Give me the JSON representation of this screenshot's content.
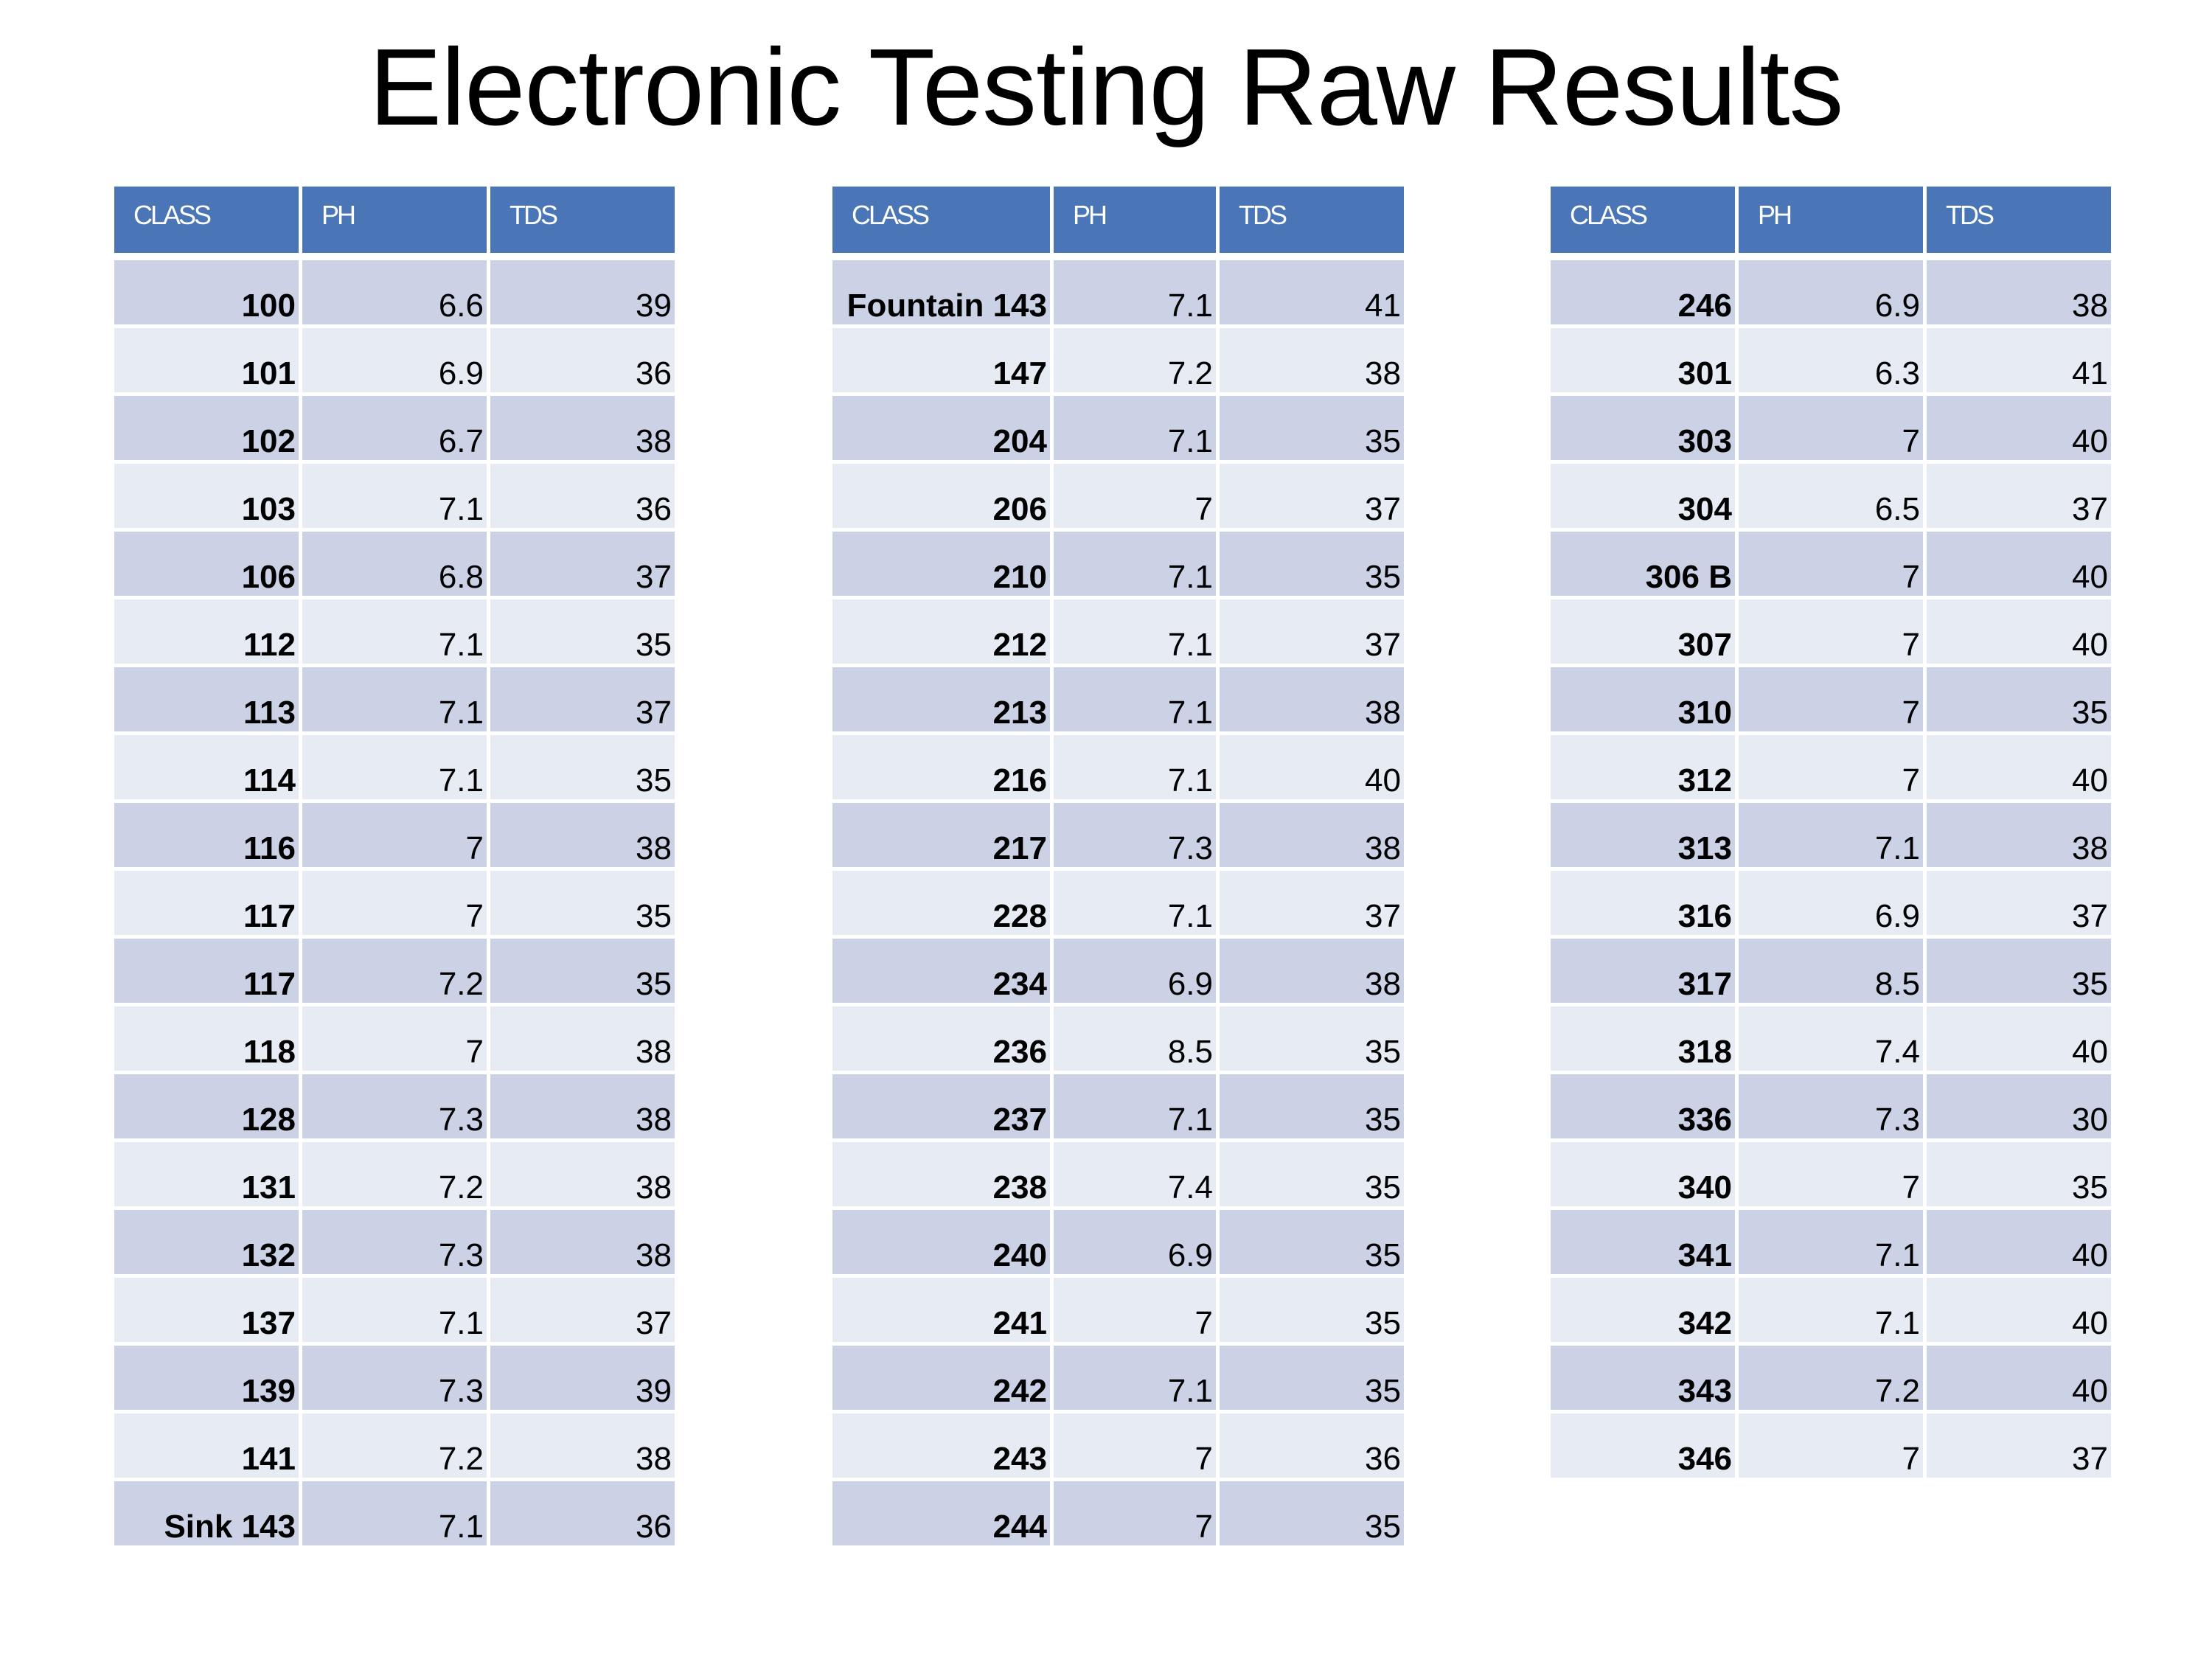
{
  "title": "Electronic Testing Raw Results",
  "headers": [
    "CLASS",
    "PH",
    "TDS"
  ],
  "colors": {
    "header": "#4a76b8",
    "row_dark": "#cbd2e6",
    "row_light": "#e7ebf3"
  },
  "tables": [
    [
      [
        "100",
        "6.6",
        "39"
      ],
      [
        "101",
        "6.9",
        "36"
      ],
      [
        "102",
        "6.7",
        "38"
      ],
      [
        "103",
        "7.1",
        "36"
      ],
      [
        "106",
        "6.8",
        "37"
      ],
      [
        "112",
        "7.1",
        "35"
      ],
      [
        "113",
        "7.1",
        "37"
      ],
      [
        "114",
        "7.1",
        "35"
      ],
      [
        "116",
        "7",
        "38"
      ],
      [
        "117",
        "7",
        "35"
      ],
      [
        "117",
        "7.2",
        "35"
      ],
      [
        "118",
        "7",
        "38"
      ],
      [
        "128",
        "7.3",
        "38"
      ],
      [
        "131",
        "7.2",
        "38"
      ],
      [
        "132",
        "7.3",
        "38"
      ],
      [
        "137",
        "7.1",
        "37"
      ],
      [
        "139",
        "7.3",
        "39"
      ],
      [
        "141",
        "7.2",
        "38"
      ],
      [
        "Sink 143",
        "7.1",
        "36"
      ]
    ],
    [
      [
        "Fountain 143",
        "7.1",
        "41"
      ],
      [
        "147",
        "7.2",
        "38"
      ],
      [
        "204",
        "7.1",
        "35"
      ],
      [
        "206",
        "7",
        "37"
      ],
      [
        "210",
        "7.1",
        "35"
      ],
      [
        "212",
        "7.1",
        "37"
      ],
      [
        "213",
        "7.1",
        "38"
      ],
      [
        "216",
        "7.1",
        "40"
      ],
      [
        "217",
        "7.3",
        "38"
      ],
      [
        "228",
        "7.1",
        "37"
      ],
      [
        "234",
        "6.9",
        "38"
      ],
      [
        "236",
        "8.5",
        "35"
      ],
      [
        "237",
        "7.1",
        "35"
      ],
      [
        "238",
        "7.4",
        "35"
      ],
      [
        "240",
        "6.9",
        "35"
      ],
      [
        "241",
        "7",
        "35"
      ],
      [
        "242",
        "7.1",
        "35"
      ],
      [
        "243",
        "7",
        "36"
      ],
      [
        "244",
        "7",
        "35"
      ]
    ],
    [
      [
        "246",
        "6.9",
        "38"
      ],
      [
        "301",
        "6.3",
        "41"
      ],
      [
        "303",
        "7",
        "40"
      ],
      [
        "304",
        "6.5",
        "37"
      ],
      [
        "306 B",
        "7",
        "40"
      ],
      [
        "307",
        "7",
        "40"
      ],
      [
        "310",
        "7",
        "35"
      ],
      [
        "312",
        "7",
        "40"
      ],
      [
        "313",
        "7.1",
        "38"
      ],
      [
        "316",
        "6.9",
        "37"
      ],
      [
        "317",
        "8.5",
        "35"
      ],
      [
        "318",
        "7.4",
        "40"
      ],
      [
        "336",
        "7.3",
        "30"
      ],
      [
        "340",
        "7",
        "35"
      ],
      [
        "341",
        "7.1",
        "40"
      ],
      [
        "342",
        "7.1",
        "40"
      ],
      [
        "343",
        "7.2",
        "40"
      ],
      [
        "346",
        "7",
        "37"
      ]
    ]
  ]
}
